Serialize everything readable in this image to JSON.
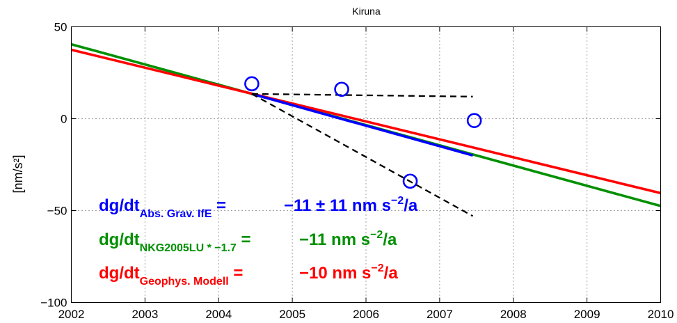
{
  "chart_data": {
    "type": "line",
    "title": "Kiruna",
    "xlabel": "",
    "ylabel": "[nm/s²]",
    "xlim": [
      2002,
      2010
    ],
    "ylim": [
      -100,
      50
    ],
    "xticks": [
      2002,
      2003,
      2004,
      2005,
      2006,
      2007,
      2008,
      2009,
      2010
    ],
    "yticks": [
      50,
      0,
      -50,
      -100
    ],
    "ytick_labels": [
      "50",
      "0",
      "−50",
      "−100"
    ],
    "grid": true,
    "series": [
      {
        "color": "#009000",
        "style": "solid",
        "x": [
          2002,
          2010
        ],
        "y": [
          40.5,
          -47.5
        ]
      },
      {
        "color": "#ff0000",
        "style": "solid",
        "x": [
          2002,
          2010
        ],
        "y": [
          37.5,
          -40.5
        ]
      },
      {
        "color": "#0000ff",
        "style": "solid",
        "x": [
          2004.45,
          2007.45
        ],
        "y": [
          13.5,
          -20
        ]
      },
      {
        "color": "#000000",
        "style": "dashed",
        "x": [
          2004.45,
          2007.45
        ],
        "y": [
          13.5,
          12
        ]
      },
      {
        "color": "#000000",
        "style": "dashed",
        "x": [
          2004.45,
          2007.45
        ],
        "y": [
          13.5,
          -53
        ]
      },
      {
        "color": "#0000ff",
        "style": "markers",
        "marker": "circle",
        "x": [
          2004.45,
          2005.67,
          2006.6,
          2007.47
        ],
        "y": [
          19,
          16,
          -34,
          -1
        ]
      }
    ],
    "annotations": [
      {
        "color": "#0000ff",
        "prefix": "dg/dt",
        "subscript": "Abs. Grav. IfE",
        "eq": " =",
        "value": "−11 ± 11  nm s",
        "exp": "−2",
        "tail": "/a"
      },
      {
        "color": "#009000",
        "prefix": "dg/dt",
        "subscript": "NKG2005LU * −1.7",
        "eq": " =",
        "value": "−11  nm s",
        "exp": "−2",
        "tail": "/a"
      },
      {
        "color": "#ff0000",
        "prefix": "dg/dt",
        "subscript": "Geophys. Modell",
        "eq": " =",
        "value": "−10  nm s",
        "exp": "−2",
        "tail": "/a"
      }
    ]
  }
}
